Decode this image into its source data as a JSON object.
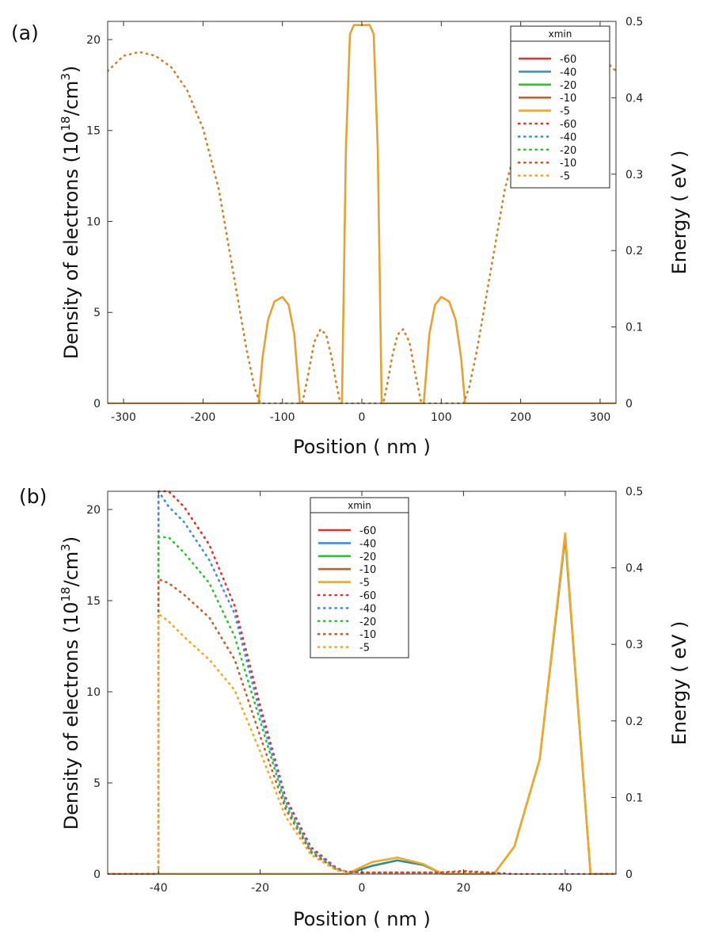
{
  "chart_data": [
    {
      "panel_label": "(a)",
      "type": "line",
      "xlabel": "Position ( nm )",
      "ylabel_left": {
        "main": "Density of electrons (10",
        "sup": "18",
        "mid": "/cm",
        "sup2": "3",
        "end": ")"
      },
      "ylabel_right": "Energy ( eV )",
      "xlim": [
        -320,
        320
      ],
      "ylim_left": [
        0,
        21
      ],
      "ylim_right": [
        0,
        0.5
      ],
      "x_ticks": [
        -300,
        -200,
        -100,
        0,
        100,
        200,
        300
      ],
      "y_ticks_left": [
        0,
        5,
        10,
        15,
        20
      ],
      "y_ticks_right": [
        0,
        0.1,
        0.2,
        0.3,
        0.4,
        0.5
      ],
      "grid": false,
      "legend": {
        "title": "xmin",
        "placement": "top-right",
        "entries": [
          {
            "label": "-60",
            "color": "#e8302a",
            "style": "solid"
          },
          {
            "label": "-40",
            "color": "#3b8ee0",
            "style": "solid"
          },
          {
            "label": "-20",
            "color": "#2ec22e",
            "style": "solid"
          },
          {
            "label": "-10",
            "color": "#c0602a",
            "style": "solid"
          },
          {
            "label": "-5",
            "color": "#f5a623",
            "style": "solid"
          },
          {
            "label": "-60",
            "color": "#e8302a",
            "style": "dotted"
          },
          {
            "label": "-40",
            "color": "#3b8ee0",
            "style": "dotted"
          },
          {
            "label": "-20",
            "color": "#2ec22e",
            "style": "dotted"
          },
          {
            "label": "-10",
            "color": "#c0602a",
            "style": "dotted"
          },
          {
            "label": "-5",
            "color": "#f5a623",
            "style": "dotted"
          }
        ]
      },
      "series": [
        {
          "axis": "left",
          "style": "solid",
          "color": "#e8a030",
          "x": [
            -320,
            -130,
            -125,
            -118,
            -110,
            -100,
            -92,
            -85,
            -78,
            -25,
            -20,
            -15,
            -10,
            -5,
            0,
            5,
            10,
            15,
            20,
            25,
            78,
            85,
            92,
            100,
            110,
            118,
            125,
            130,
            320
          ],
          "y": [
            0,
            0,
            2.5,
            4.6,
            5.6,
            5.85,
            5.4,
            3.8,
            0,
            0,
            14,
            20.3,
            20.8,
            20.8,
            20.8,
            20.8,
            20.8,
            20.3,
            14,
            0,
            0,
            3.8,
            5.4,
            5.85,
            5.6,
            4.6,
            2.5,
            0,
            0
          ]
        },
        {
          "axis": "right",
          "style": "dotted",
          "color": "#d08028",
          "x": [
            -320,
            -300,
            -280,
            -260,
            -240,
            -220,
            -200,
            -180,
            -160,
            -145,
            -135,
            -128,
            -122,
            -110,
            -100,
            -90,
            -80,
            -75,
            -68,
            -60,
            -52,
            -45,
            -38,
            -32,
            -27,
            -22,
            -15,
            -8,
            0,
            8,
            15,
            22,
            27,
            32,
            38,
            45,
            52,
            60,
            68,
            75,
            80,
            90,
            100,
            110,
            122,
            128,
            135,
            145,
            160,
            180,
            200,
            220,
            240,
            260,
            280,
            300,
            320
          ],
          "y": [
            0.435,
            0.455,
            0.46,
            0.455,
            0.44,
            0.41,
            0.36,
            0.28,
            0.16,
            0.07,
            0.02,
            0,
            0,
            0,
            0,
            0,
            0,
            0,
            0.035,
            0.08,
            0.097,
            0.09,
            0.06,
            0.025,
            0,
            0,
            0,
            0,
            0,
            0,
            0,
            0,
            0,
            0.025,
            0.06,
            0.09,
            0.097,
            0.08,
            0.035,
            0,
            0,
            0,
            0,
            0,
            0,
            0,
            0.02,
            0.07,
            0.16,
            0.28,
            0.36,
            0.41,
            0.44,
            0.455,
            0.46,
            0.455,
            0.435
          ]
        }
      ]
    },
    {
      "panel_label": "(b)",
      "type": "line",
      "xlabel": "Position ( nm )",
      "ylabel_left": {
        "main": "Density of electrons (10",
        "sup": "18",
        "mid": "/cm",
        "sup2": "3",
        "end": ")"
      },
      "ylabel_right": "Energy ( eV )",
      "xlim": [
        -50,
        50
      ],
      "ylim_left": [
        0,
        21
      ],
      "ylim_right": [
        0,
        0.5
      ],
      "x_ticks": [
        -40,
        -20,
        0,
        20,
        40
      ],
      "y_ticks_left": [
        0,
        5,
        10,
        15,
        20
      ],
      "y_ticks_right": [
        0,
        0.1,
        0.2,
        0.3,
        0.4,
        0.5
      ],
      "grid": false,
      "legend": {
        "title": "xmin",
        "placement": "top-center",
        "entries": [
          {
            "label": "-60",
            "color": "#e8302a",
            "style": "solid"
          },
          {
            "label": "-40",
            "color": "#3b8ee0",
            "style": "solid"
          },
          {
            "label": "-20",
            "color": "#2ec22e",
            "style": "solid"
          },
          {
            "label": "-10",
            "color": "#c0602a",
            "style": "solid"
          },
          {
            "label": "-5",
            "color": "#f5a623",
            "style": "solid"
          },
          {
            "label": "-60",
            "color": "#e8302a",
            "style": "dotted"
          },
          {
            "label": "-40",
            "color": "#3b8ee0",
            "style": "dotted"
          },
          {
            "label": "-20",
            "color": "#2ec22e",
            "style": "dotted"
          },
          {
            "label": "-10",
            "color": "#c0602a",
            "style": "dotted"
          },
          {
            "label": "-5",
            "color": "#f5a623",
            "style": "dotted"
          }
        ]
      },
      "series": [
        {
          "axis": "left",
          "style": "solid",
          "color": "#2f8f8f",
          "x": [
            -50,
            -3,
            2,
            7,
            12,
            16,
            26,
            30,
            35,
            40,
            45,
            50
          ],
          "y": [
            0,
            0,
            0.45,
            0.75,
            0.5,
            0,
            0,
            1.5,
            6.3,
            18.5,
            0,
            0
          ]
        },
        {
          "axis": "left",
          "style": "solid",
          "color": "#f5a623",
          "x": [
            -50,
            -3,
            2,
            7,
            12,
            16,
            26,
            30,
            35,
            40,
            45,
            50
          ],
          "y": [
            0,
            0,
            0.65,
            0.9,
            0.55,
            0,
            0,
            1.5,
            6.3,
            18.7,
            0,
            0
          ]
        },
        {
          "axis": "right",
          "style": "dotted",
          "color": "#e8302a",
          "x": [
            -50,
            -40,
            -40,
            -38,
            -35,
            -30,
            -25,
            -20,
            -15,
            -10,
            -5,
            -3,
            0,
            5,
            10,
            15,
            20,
            25,
            30,
            35,
            40,
            45,
            50
          ],
          "y": [
            0,
            0,
            0.5,
            0.5,
            0.48,
            0.43,
            0.35,
            0.22,
            0.1,
            0.035,
            0.008,
            0.003,
            0.002,
            0.002,
            0.002,
            0.002,
            0.003,
            0.002,
            0,
            0,
            0,
            0,
            0
          ]
        },
        {
          "axis": "right",
          "style": "dotted",
          "color": "#3b8ee0",
          "x": [
            -40,
            -40,
            -38,
            -35,
            -30,
            -25,
            -20,
            -15,
            -10,
            -5,
            -3
          ],
          "y": [
            0,
            0.5,
            0.48,
            0.46,
            0.41,
            0.34,
            0.21,
            0.095,
            0.032,
            0.007,
            0.003
          ]
        },
        {
          "axis": "right",
          "style": "dotted",
          "color": "#2ec22e",
          "x": [
            -40,
            -40,
            -38,
            -35,
            -30,
            -25,
            -20,
            -15,
            -10,
            -5,
            -3
          ],
          "y": [
            0,
            0.44,
            0.44,
            0.42,
            0.38,
            0.31,
            0.2,
            0.09,
            0.03,
            0.006,
            0.003
          ]
        },
        {
          "axis": "right",
          "style": "dotted",
          "color": "#c0602a",
          "x": [
            -40,
            -40,
            -38,
            -35,
            -30,
            -25,
            -20,
            -15,
            -10,
            -5,
            -3,
            0,
            5,
            10,
            15,
            20,
            25,
            28
          ],
          "y": [
            0,
            0.385,
            0.38,
            0.365,
            0.335,
            0.28,
            0.18,
            0.085,
            0.028,
            0.006,
            0.003,
            0.002,
            0.002,
            0.002,
            0.002,
            0.004,
            0.002,
            0
          ]
        },
        {
          "axis": "right",
          "style": "dotted",
          "color": "#f5a623",
          "x": [
            -40,
            -40,
            -38,
            -35,
            -30,
            -25,
            -20,
            -15,
            -10,
            -5,
            -3
          ],
          "y": [
            0,
            0.34,
            0.33,
            0.31,
            0.28,
            0.24,
            0.16,
            0.075,
            0.025,
            0.005,
            0.003
          ]
        }
      ]
    }
  ]
}
